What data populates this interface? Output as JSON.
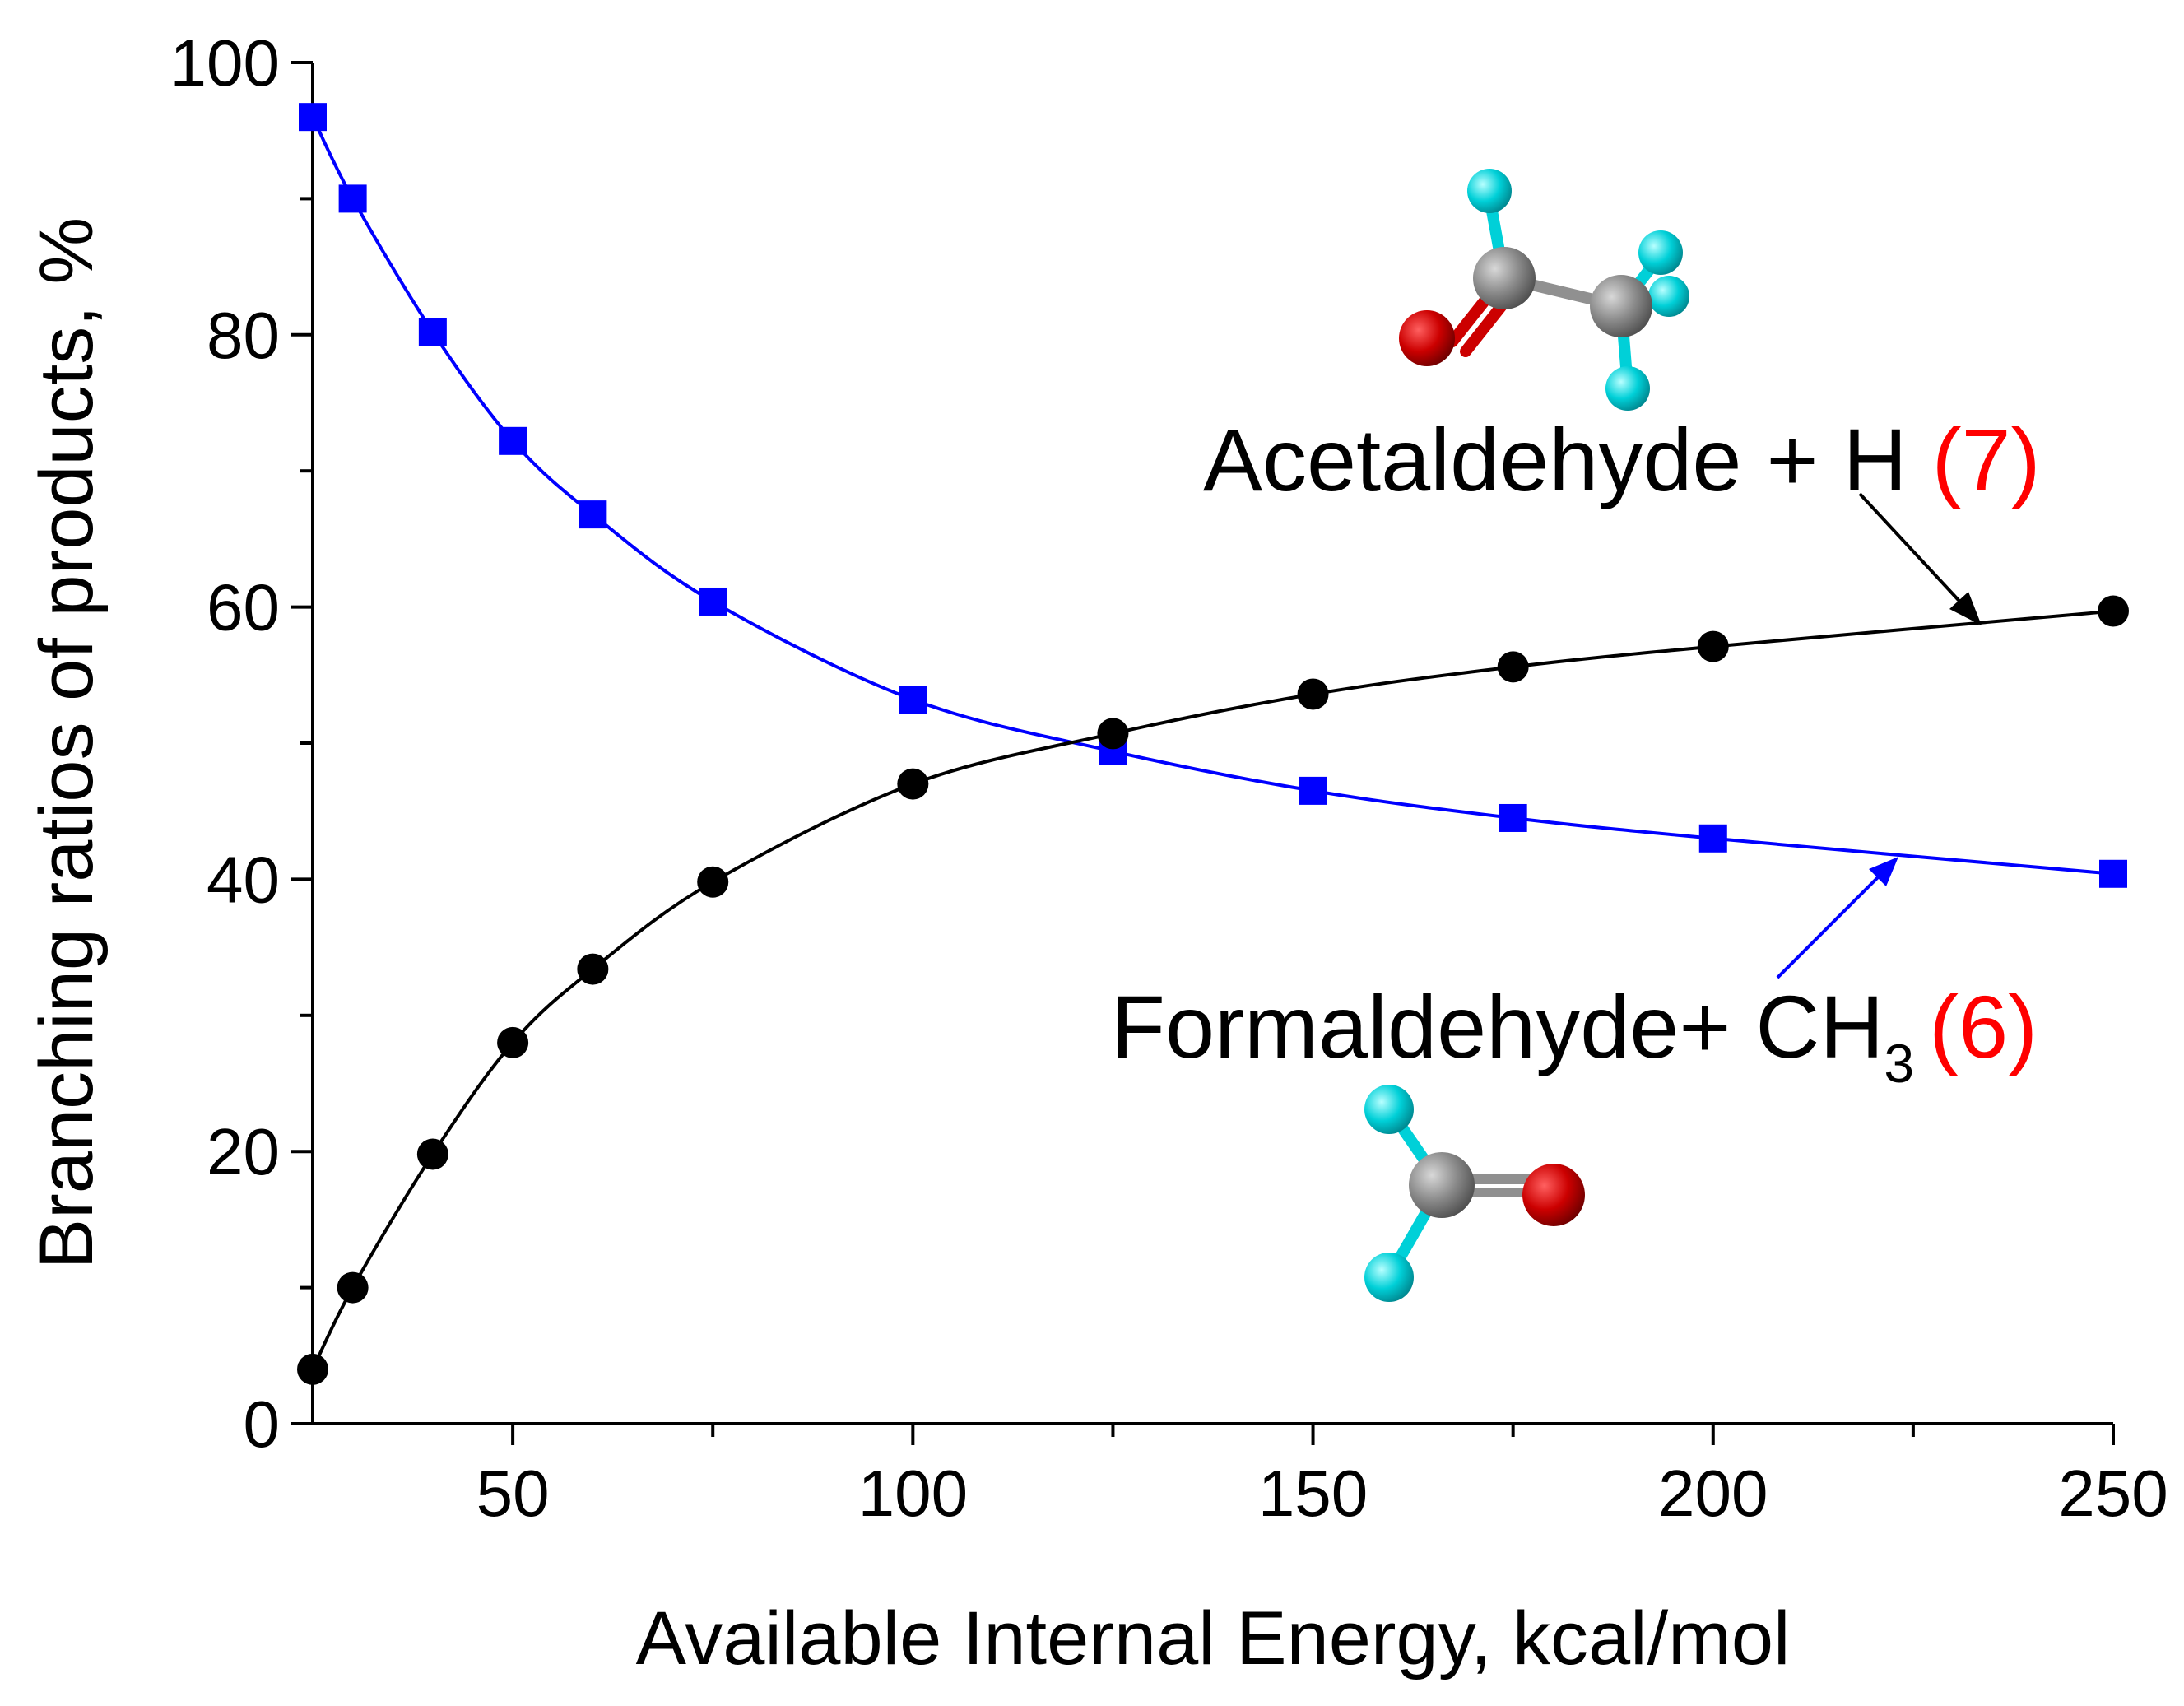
{
  "chart_data": {
    "type": "line",
    "title": "",
    "xlabel": "Available Internal Energy, kcal/mol",
    "ylabel": "Branching ratios of products,  %",
    "xlim": [
      25,
      250
    ],
    "ylim": [
      0,
      100
    ],
    "x_ticks": [
      50,
      100,
      150,
      200,
      250
    ],
    "x_minor_ticks": [
      75,
      125,
      175,
      225
    ],
    "y_ticks": [
      0,
      20,
      40,
      60,
      80,
      100
    ],
    "y_minor_ticks": [
      10,
      30,
      50,
      70,
      90
    ],
    "grid": false,
    "series": [
      {
        "name": "Formaldehyde + CH3",
        "marker": "square",
        "color": "#0000ff",
        "x": [
          25,
          30,
          40,
          50,
          60,
          75,
          100,
          125,
          150,
          175,
          200,
          250
        ],
        "y": [
          96,
          90,
          80.2,
          72.2,
          66.8,
          60.4,
          53.2,
          49.4,
          46.5,
          44.5,
          43,
          40.4
        ]
      },
      {
        "name": "Acetaldehyde + H",
        "marker": "circle",
        "color": "#000000",
        "x": [
          25,
          30,
          40,
          50,
          60,
          75,
          100,
          125,
          150,
          175,
          200,
          250
        ],
        "y": [
          4,
          10,
          19.8,
          28,
          33.4,
          39.8,
          47,
          50.7,
          53.6,
          55.6,
          57.1,
          59.7
        ]
      }
    ],
    "annotations": [
      {
        "name": "acetaldehyde",
        "text": "Acetaldehyde + H ",
        "number": "(7)",
        "number_color": "#ff0000",
        "arrow_color": "#000000"
      },
      {
        "name": "formaldehyde",
        "text": "Formaldehyde+ CH",
        "subscript": "3",
        "number": "(6)",
        "number_color": "#ff0000",
        "arrow_color": "#0000ff"
      }
    ],
    "molecule_colors": {
      "carbon": "#808080",
      "oxygen": "#cc0000",
      "hydrogen": "#00d0d8"
    }
  }
}
